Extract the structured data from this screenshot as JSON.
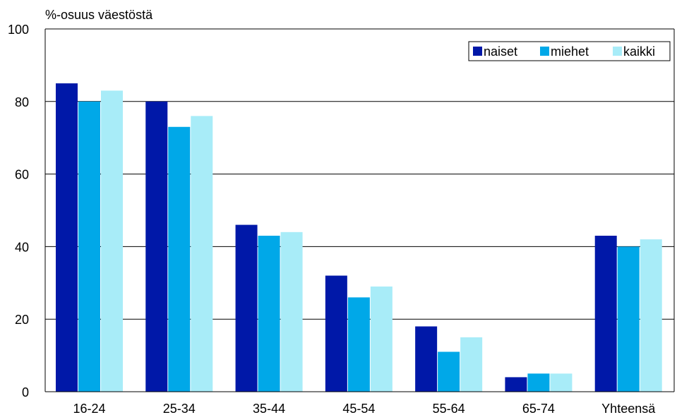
{
  "chart_data": {
    "type": "bar",
    "ylabel": "%-osuus väestöstä",
    "xlabel": "",
    "ylim": [
      0,
      100
    ],
    "yticks": [
      0,
      20,
      40,
      60,
      80,
      100
    ],
    "grid": true,
    "legend_position": "top-right",
    "categories": [
      "16-24",
      "25-34",
      "35-44",
      "45-54",
      "55-64",
      "65-74",
      "Yhteensä"
    ],
    "series": [
      {
        "name": "naiset",
        "color": "#0018a8",
        "values": [
          85,
          80,
          46,
          32,
          18,
          4,
          43
        ]
      },
      {
        "name": "miehet",
        "color": "#00a8e8",
        "values": [
          80,
          73,
          43,
          26,
          11,
          5,
          40
        ]
      },
      {
        "name": "kaikki",
        "color": "#a8ecf8",
        "values": [
          83,
          76,
          44,
          29,
          15,
          5,
          42
        ]
      }
    ]
  }
}
